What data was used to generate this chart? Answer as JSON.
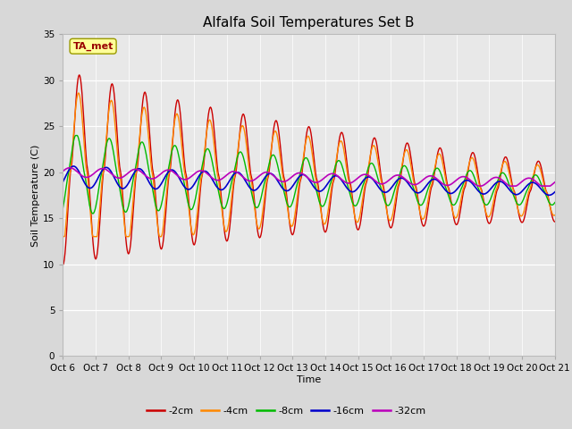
{
  "title": "Alfalfa Soil Temperatures Set B",
  "xlabel": "Time",
  "ylabel": "Soil Temperature (C)",
  "ylim": [
    0,
    35
  ],
  "yticks": [
    0,
    5,
    10,
    15,
    20,
    25,
    30,
    35
  ],
  "xtick_labels": [
    "Oct 6",
    "Oct 7",
    "Oct 8",
    "Oct 9",
    "Oct 10",
    "Oct 11",
    "Oct 12",
    "Oct 13",
    "Oct 14",
    "Oct 15",
    "Oct 16",
    "Oct 17",
    "Oct 18",
    "Oct 19",
    "Oct 20",
    "Oct 21"
  ],
  "annotation": "TA_met",
  "series_colors": [
    "#cc0000",
    "#ff8800",
    "#00bb00",
    "#0000cc",
    "#bb00bb"
  ],
  "series_labels": [
    "-2cm",
    "-4cm",
    "-8cm",
    "-16cm",
    "-32cm"
  ],
  "series_linewidths": [
    1.0,
    1.0,
    1.0,
    1.2,
    1.2
  ],
  "fig_bg_color": "#d8d8d8",
  "plot_bg_color": "#e8e8e8",
  "data_area_bg": "#ffffff",
  "title_fontsize": 11,
  "axis_fontsize": 8,
  "tick_fontsize": 7.5
}
